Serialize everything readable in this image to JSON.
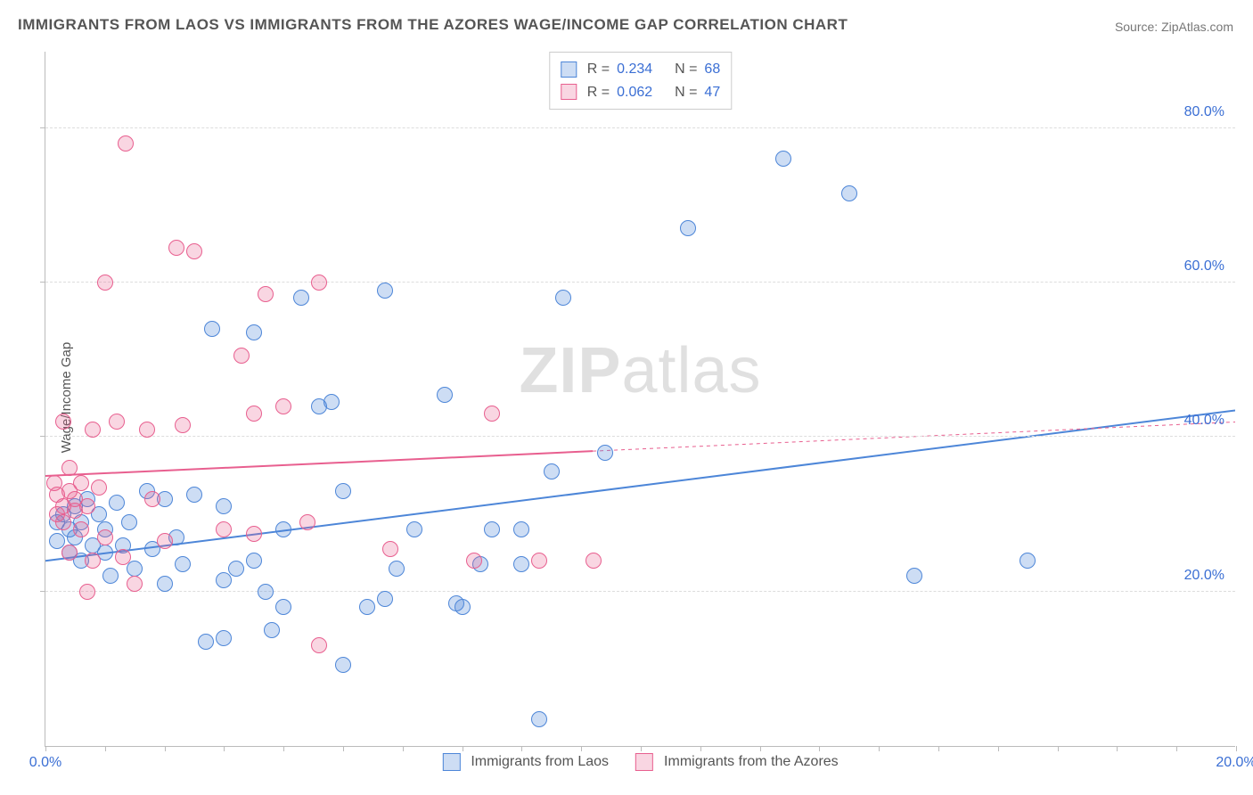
{
  "title": "IMMIGRANTS FROM LAOS VS IMMIGRANTS FROM THE AZORES WAGE/INCOME GAP CORRELATION CHART",
  "source": "Source: ZipAtlas.com",
  "ylabel": "Wage/Income Gap",
  "watermark_bold": "ZIP",
  "watermark_light": "atlas",
  "chart": {
    "type": "scatter",
    "background_color": "#ffffff",
    "grid_color": "#dddddd",
    "axis_color": "#bbbbbb",
    "label_color": "#555555",
    "tick_color": "#3b6fd4",
    "xlim": [
      0,
      20
    ],
    "ylim": [
      0,
      90
    ],
    "xticks": [
      0,
      20
    ],
    "xtick_labels": [
      "0.0%",
      "20.0%"
    ],
    "yticks": [
      20,
      40,
      60,
      80
    ],
    "ytick_labels": [
      "20.0%",
      "40.0%",
      "60.0%",
      "80.0%"
    ],
    "marker_radius": 9,
    "marker_border_width": 1.2,
    "marker_fill_opacity": 0.28,
    "trend_line_width": 2,
    "trend_dash_extension": true,
    "series": [
      {
        "name": "Immigrants from Laos",
        "color": "#4d86d8",
        "fill": "rgba(77,134,216,0.28)",
        "r": 0.234,
        "n": 68,
        "trend": {
          "x1": 0,
          "y1": 24,
          "x2": 20,
          "y2": 43.5
        },
        "trend_dash_from_x": null,
        "points": [
          [
            0.2,
            29
          ],
          [
            0.2,
            26.5
          ],
          [
            0.3,
            30
          ],
          [
            0.4,
            28
          ],
          [
            0.4,
            25
          ],
          [
            0.5,
            31
          ],
          [
            0.5,
            27
          ],
          [
            0.6,
            29
          ],
          [
            0.6,
            24
          ],
          [
            0.7,
            32
          ],
          [
            0.8,
            26
          ],
          [
            0.9,
            30
          ],
          [
            1.0,
            28
          ],
          [
            1.0,
            25
          ],
          [
            1.1,
            22
          ],
          [
            1.2,
            31.5
          ],
          [
            1.3,
            26
          ],
          [
            1.4,
            29
          ],
          [
            1.5,
            23
          ],
          [
            1.7,
            33
          ],
          [
            1.8,
            25.5
          ],
          [
            2.0,
            32
          ],
          [
            2.0,
            21
          ],
          [
            2.2,
            27
          ],
          [
            2.3,
            23.5
          ],
          [
            2.5,
            32.5
          ],
          [
            2.7,
            13.5
          ],
          [
            2.8,
            54
          ],
          [
            3.0,
            31
          ],
          [
            3.0,
            21.5
          ],
          [
            3.0,
            14
          ],
          [
            3.2,
            23
          ],
          [
            3.5,
            24
          ],
          [
            3.5,
            53.5
          ],
          [
            3.7,
            20
          ],
          [
            3.8,
            15
          ],
          [
            4.0,
            28
          ],
          [
            4.0,
            18
          ],
          [
            4.3,
            58
          ],
          [
            4.6,
            44
          ],
          [
            4.8,
            44.5
          ],
          [
            5.0,
            33
          ],
          [
            5.0,
            10.5
          ],
          [
            5.4,
            18
          ],
          [
            5.7,
            19
          ],
          [
            5.7,
            59
          ],
          [
            5.9,
            23
          ],
          [
            6.2,
            28
          ],
          [
            6.7,
            45.5
          ],
          [
            6.9,
            18.5
          ],
          [
            7.0,
            18
          ],
          [
            7.3,
            23.5
          ],
          [
            7.5,
            28
          ],
          [
            8.0,
            28
          ],
          [
            8.0,
            23.5
          ],
          [
            8.3,
            3.5
          ],
          [
            8.5,
            35.5
          ],
          [
            8.7,
            58
          ],
          [
            9.4,
            38
          ],
          [
            10.8,
            67
          ],
          [
            12.4,
            76
          ],
          [
            13.5,
            71.5
          ],
          [
            14.6,
            22
          ],
          [
            16.5,
            24
          ]
        ]
      },
      {
        "name": "Immigrants from the Azores",
        "color": "#e85f8f",
        "fill": "rgba(232,95,143,0.26)",
        "r": 0.062,
        "n": 47,
        "trend": {
          "x1": 0,
          "y1": 35,
          "x2": 20,
          "y2": 42
        },
        "trend_dash_from_x": 9.2,
        "points": [
          [
            0.15,
            34
          ],
          [
            0.2,
            30
          ],
          [
            0.2,
            32.5
          ],
          [
            0.3,
            29
          ],
          [
            0.3,
            31
          ],
          [
            0.3,
            42
          ],
          [
            0.4,
            33
          ],
          [
            0.4,
            25
          ],
          [
            0.4,
            36
          ],
          [
            0.5,
            30.5
          ],
          [
            0.5,
            32
          ],
          [
            0.6,
            28
          ],
          [
            0.6,
            34
          ],
          [
            0.7,
            20
          ],
          [
            0.7,
            31
          ],
          [
            0.8,
            24
          ],
          [
            0.8,
            41
          ],
          [
            0.9,
            33.5
          ],
          [
            1.0,
            27
          ],
          [
            1.0,
            60
          ],
          [
            1.2,
            42
          ],
          [
            1.3,
            24.5
          ],
          [
            1.35,
            78
          ],
          [
            1.5,
            21
          ],
          [
            1.7,
            41
          ],
          [
            1.8,
            32
          ],
          [
            2.0,
            26.5
          ],
          [
            2.2,
            64.5
          ],
          [
            2.3,
            41.5
          ],
          [
            2.5,
            64
          ],
          [
            3.0,
            28
          ],
          [
            3.3,
            50.5
          ],
          [
            3.5,
            43
          ],
          [
            3.5,
            27.5
          ],
          [
            3.7,
            58.5
          ],
          [
            4.0,
            44
          ],
          [
            4.4,
            29
          ],
          [
            4.6,
            13
          ],
          [
            4.6,
            60
          ],
          [
            5.8,
            25.5
          ],
          [
            7.2,
            24
          ],
          [
            7.5,
            43
          ],
          [
            8.3,
            24
          ],
          [
            9.2,
            24
          ]
        ]
      }
    ],
    "stats_box": {
      "r_label": "R =",
      "n_label": "N ="
    },
    "legend_labels": [
      "Immigrants from Laos",
      "Immigrants from the Azores"
    ]
  }
}
